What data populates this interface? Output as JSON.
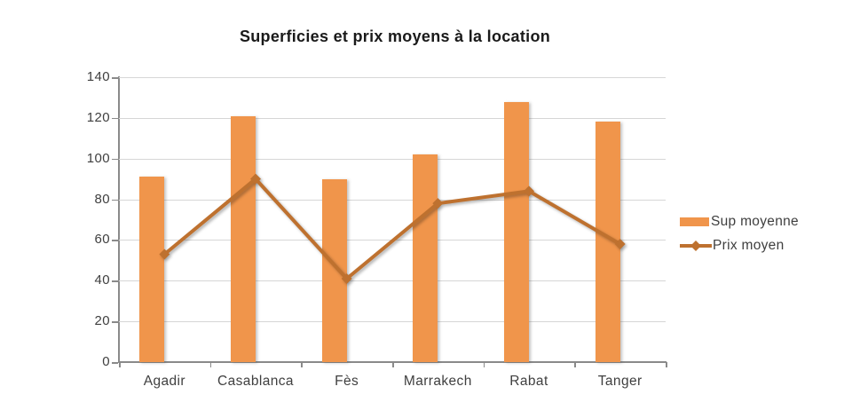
{
  "title": "Superficies et prix moyens à la location",
  "chart_data": {
    "type": "bar",
    "subtype": "column-and-line-combo",
    "title": "Superficies et prix moyens à la location",
    "categories": [
      "Agadir",
      "Casablanca",
      "Fès",
      "Marrakech",
      "Rabat",
      "Tanger"
    ],
    "series": [
      {
        "name": "Sup moyenne",
        "type": "column",
        "color": "#F0954B",
        "values": [
          91,
          121,
          90,
          102,
          128,
          118
        ]
      },
      {
        "name": "Prix moyen",
        "type": "line",
        "marker": "diamond",
        "color": "#BE712F",
        "values": [
          53,
          90,
          41,
          78,
          84,
          58
        ]
      }
    ],
    "xlabel": "",
    "ylabel": "",
    "ylim": [
      0,
      140
    ],
    "ytick_step": 20,
    "ytick_labels": [
      "0",
      "20",
      "40",
      "60",
      "80",
      "100",
      "120",
      "140"
    ],
    "grid": "horizontal",
    "legend_position": "right",
    "colors": {
      "bar_fill": "#F0954B",
      "line_stroke": "#BE712F",
      "gridline": "#D6D6D6",
      "axis": "#8A8A8A",
      "tick_text": "#3F3F3F",
      "title_text": "#1A1A1A"
    }
  }
}
